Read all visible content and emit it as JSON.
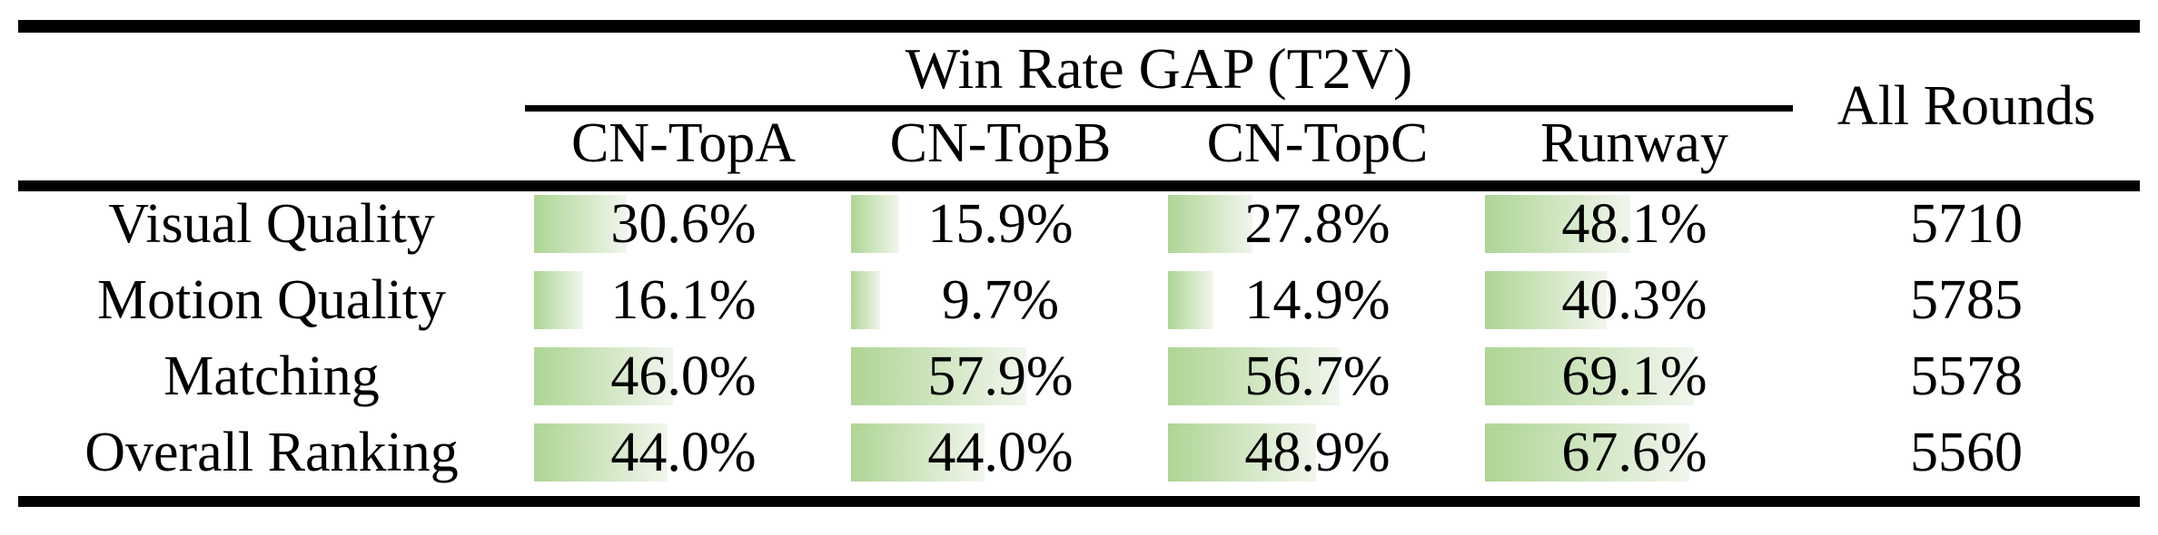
{
  "table": {
    "title": "Win Rate GAP (T2V)",
    "all_rounds_label": "All Rounds",
    "columns": [
      "CN-TopA",
      "CN-TopB",
      "CN-TopC",
      "Runway"
    ],
    "rows": [
      {
        "label": "Visual Quality",
        "cells": [
          {
            "text": "30.6%",
            "bar": 30.6
          },
          {
            "text": "15.9%",
            "bar": 15.9
          },
          {
            "text": "27.8%",
            "bar": 27.8
          },
          {
            "text": "48.1%",
            "bar": 48.1
          }
        ],
        "all_rounds": "5710"
      },
      {
        "label": "Motion Quality",
        "cells": [
          {
            "text": "16.1%",
            "bar": 16.1
          },
          {
            "text": "9.7%",
            "bar": 9.7
          },
          {
            "text": "14.9%",
            "bar": 14.9
          },
          {
            "text": "40.3%",
            "bar": 40.3
          }
        ],
        "all_rounds": "5785"
      },
      {
        "label": "Matching",
        "cells": [
          {
            "text": "46.0%",
            "bar": 46.0
          },
          {
            "text": "57.9%",
            "bar": 57.9
          },
          {
            "text": "56.7%",
            "bar": 56.7
          },
          {
            "text": "69.1%",
            "bar": 69.1
          }
        ],
        "all_rounds": "5578"
      },
      {
        "label": "Overall Ranking",
        "cells": [
          {
            "text": "44.0%",
            "bar": 44.0
          },
          {
            "text": "44.0%",
            "bar": 44.0
          },
          {
            "text": "48.9%",
            "bar": 48.9
          },
          {
            "text": "67.6%",
            "bar": 67.6
          }
        ],
        "all_rounds": "5560"
      }
    ],
    "colors": {
      "bar_gradient_start": "#aed594",
      "bar_gradient_end": "#f1f6ed",
      "rule_color": "#000000",
      "text_color": "#000000",
      "background": "#ffffff"
    }
  },
  "chart_data": {
    "type": "table",
    "title": "Win Rate GAP (T2V)",
    "categories": [
      "Visual Quality",
      "Motion Quality",
      "Matching",
      "Overall Ranking"
    ],
    "series": [
      {
        "name": "CN-TopA",
        "values": [
          30.6,
          16.1,
          46.0,
          44.0
        ]
      },
      {
        "name": "CN-TopB",
        "values": [
          15.9,
          9.7,
          57.9,
          44.0
        ]
      },
      {
        "name": "CN-TopC",
        "values": [
          27.8,
          14.9,
          56.7,
          48.9
        ]
      },
      {
        "name": "Runway",
        "values": [
          48.1,
          40.3,
          69.1,
          67.6
        ]
      },
      {
        "name": "All Rounds",
        "values": [
          5710,
          5785,
          5578,
          5560
        ]
      }
    ],
    "value_unit": "%",
    "bar_scale_max": 100
  }
}
